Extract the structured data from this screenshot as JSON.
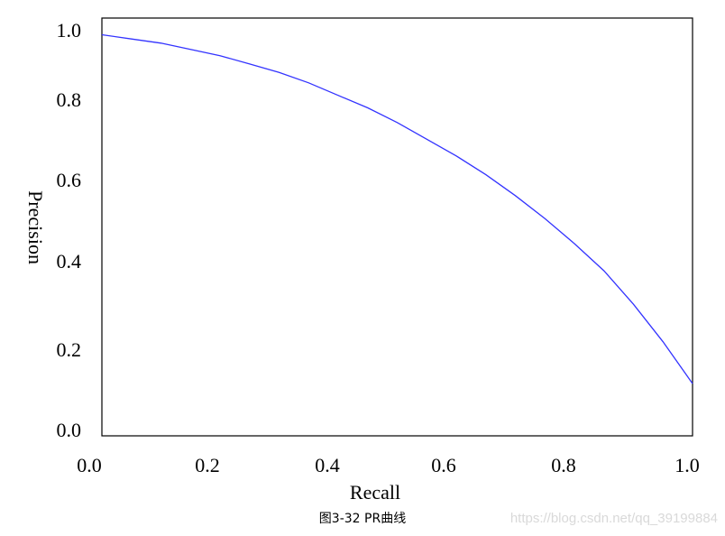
{
  "caption": "图3-32 PR曲线",
  "watermark": "https://blog.csdn.net/qq_39199884",
  "chart_data": {
    "type": "line",
    "title": "",
    "xlabel": "Recall",
    "ylabel": "Precision",
    "xlim": [
      0,
      1
    ],
    "ylim": [
      0,
      1
    ],
    "grid": false,
    "legend": "none",
    "xticks": [
      "0.0",
      "0.2",
      "0.4",
      "0.6",
      "0.8",
      "1.0"
    ],
    "yticks": [
      "0.0",
      "0.2",
      "0.4",
      "0.6",
      "0.8",
      "1.0"
    ],
    "line_color": "#3333ff",
    "series": [
      {
        "x": [
          0.0,
          0.05,
          0.1,
          0.15,
          0.2,
          0.25,
          0.3,
          0.35,
          0.4,
          0.45,
          0.5,
          0.55,
          0.6,
          0.65,
          0.7,
          0.75,
          0.8,
          0.85,
          0.9,
          0.95,
          1.0
        ],
        "y": [
          0.96,
          0.95,
          0.94,
          0.925,
          0.91,
          0.89,
          0.87,
          0.845,
          0.815,
          0.785,
          0.75,
          0.71,
          0.67,
          0.625,
          0.575,
          0.52,
          0.46,
          0.395,
          0.315,
          0.225,
          0.125
        ]
      }
    ]
  }
}
